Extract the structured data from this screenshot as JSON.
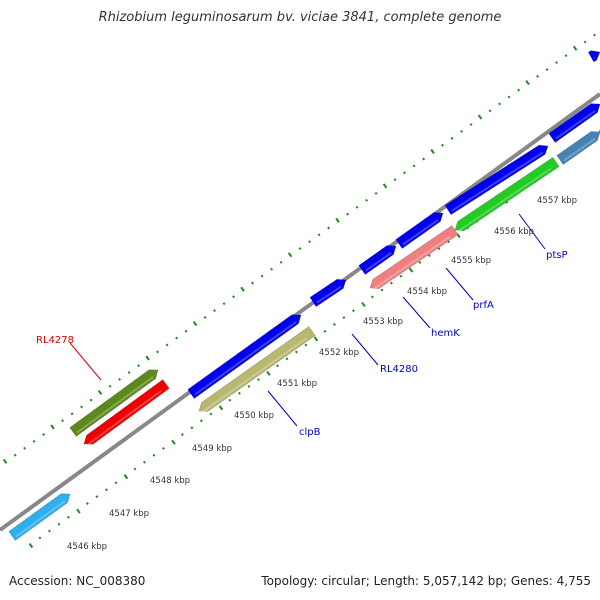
{
  "title": "Rhizobium leguminosarum bv. viciae 3841, complete genome",
  "footer": {
    "accession": "Accession: NC_008380",
    "stats": "Topology: circular; Length: 5,057,142 bp; Genes: 4,755"
  },
  "colors": {
    "backbone": "#888888",
    "tick_major": "#2d7a2d",
    "tick_minor": "#1f8a1f",
    "cds_blue": "#0000ee",
    "label_blue": "#0000cc",
    "label_red": "#dd0000",
    "scale_text": "#333333"
  },
  "map": {
    "scale_ticks": [
      {
        "kbp": 4546,
        "label": "4546 kbp"
      },
      {
        "kbp": 4547,
        "label": "4547 kbp"
      },
      {
        "kbp": 4548,
        "label": "4548 kbp"
      },
      {
        "kbp": 4549,
        "label": "4549 kbp"
      },
      {
        "kbp": 4550,
        "label": "4550 kbp"
      },
      {
        "kbp": 4551,
        "label": "4551 kbp"
      },
      {
        "kbp": 4552,
        "label": "4552 kbp"
      },
      {
        "kbp": 4553,
        "label": "4553 kbp"
      },
      {
        "kbp": 4554,
        "label": "4554 kbp"
      },
      {
        "kbp": 4555,
        "label": "4555 kbp"
      },
      {
        "kbp": 4556,
        "label": "4556 kbp"
      },
      {
        "kbp": 4557,
        "label": "4557 kbp"
      }
    ],
    "gene_labels": [
      {
        "text": "RL4278",
        "color": "red"
      },
      {
        "text": "clpB",
        "color": "blue"
      },
      {
        "text": "RL4280",
        "color": "blue"
      },
      {
        "text": "hemK",
        "color": "blue"
      },
      {
        "text": "prfA",
        "color": "blue"
      },
      {
        "text": "ptsP",
        "color": "blue"
      }
    ],
    "features": [
      {
        "strand": "plus",
        "color": "#2faef0",
        "kind": "cds"
      },
      {
        "strand": "plus",
        "color": "#5c8a1a",
        "kind": "cds"
      },
      {
        "strand": "minus",
        "color": "#ee0000",
        "kind": "cds"
      },
      {
        "strand": "plus",
        "color": "#0000ee",
        "kind": "cds"
      },
      {
        "strand": "minus",
        "color": "#b8b870",
        "kind": "cds"
      },
      {
        "strand": "plus",
        "color": "#0000ee",
        "kind": "cds"
      },
      {
        "strand": "plus",
        "color": "#0000ee",
        "kind": "cds"
      },
      {
        "strand": "plus",
        "color": "#0000ee",
        "kind": "cds"
      },
      {
        "strand": "minus",
        "color": "#f08080",
        "kind": "cds"
      },
      {
        "strand": "plus",
        "color": "#0000ee",
        "kind": "cds"
      },
      {
        "strand": "minus",
        "color": "#22cc22",
        "kind": "cds"
      },
      {
        "strand": "plus",
        "color": "#0000ee",
        "kind": "cds"
      },
      {
        "strand": "plus",
        "color": "#4682b4",
        "kind": "cds"
      },
      {
        "strand": "plus",
        "color": "#0000ee",
        "kind": "cds"
      }
    ]
  }
}
